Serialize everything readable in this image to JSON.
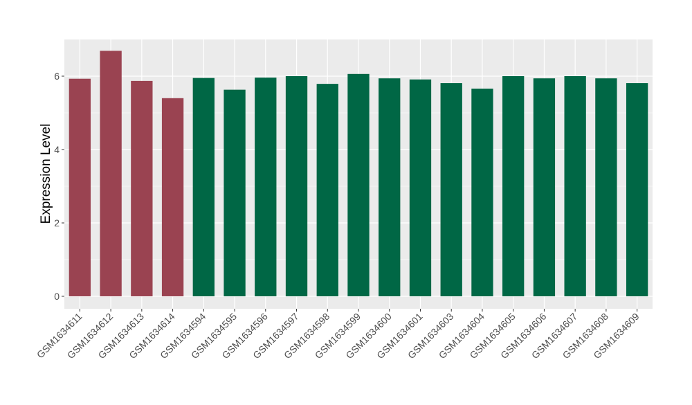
{
  "chart_data": {
    "type": "bar",
    "title": "",
    "xlabel": "",
    "ylabel": "Expression Level",
    "ylim": [
      -0.34,
      7.0
    ],
    "yticks": [
      0,
      2,
      4,
      6
    ],
    "grid": true,
    "legend": "none",
    "categories": [
      "GSM1634611",
      "GSM1634612",
      "GSM1634613",
      "GSM1634614",
      "GSM1634594",
      "GSM1634595",
      "GSM1634596",
      "GSM1634597",
      "GSM1634598",
      "GSM1634599",
      "GSM1634600",
      "GSM1634601",
      "GSM1634603",
      "GSM1634604",
      "GSM1634605",
      "GSM1634606",
      "GSM1634607",
      "GSM1634608",
      "GSM1634609"
    ],
    "values": [
      5.93,
      6.69,
      5.87,
      5.4,
      5.95,
      5.63,
      5.96,
      6.0,
      5.79,
      6.06,
      5.94,
      5.91,
      5.81,
      5.66,
      6.0,
      5.94,
      6.0,
      5.94,
      5.81
    ],
    "groups": [
      "a",
      "a",
      "a",
      "a",
      "b",
      "b",
      "b",
      "b",
      "b",
      "b",
      "b",
      "b",
      "b",
      "b",
      "b",
      "b",
      "b",
      "b",
      "b"
    ],
    "colors": {
      "a": "#9A4351",
      "b": "#006745"
    },
    "panel_background": "#EBEBEB"
  }
}
